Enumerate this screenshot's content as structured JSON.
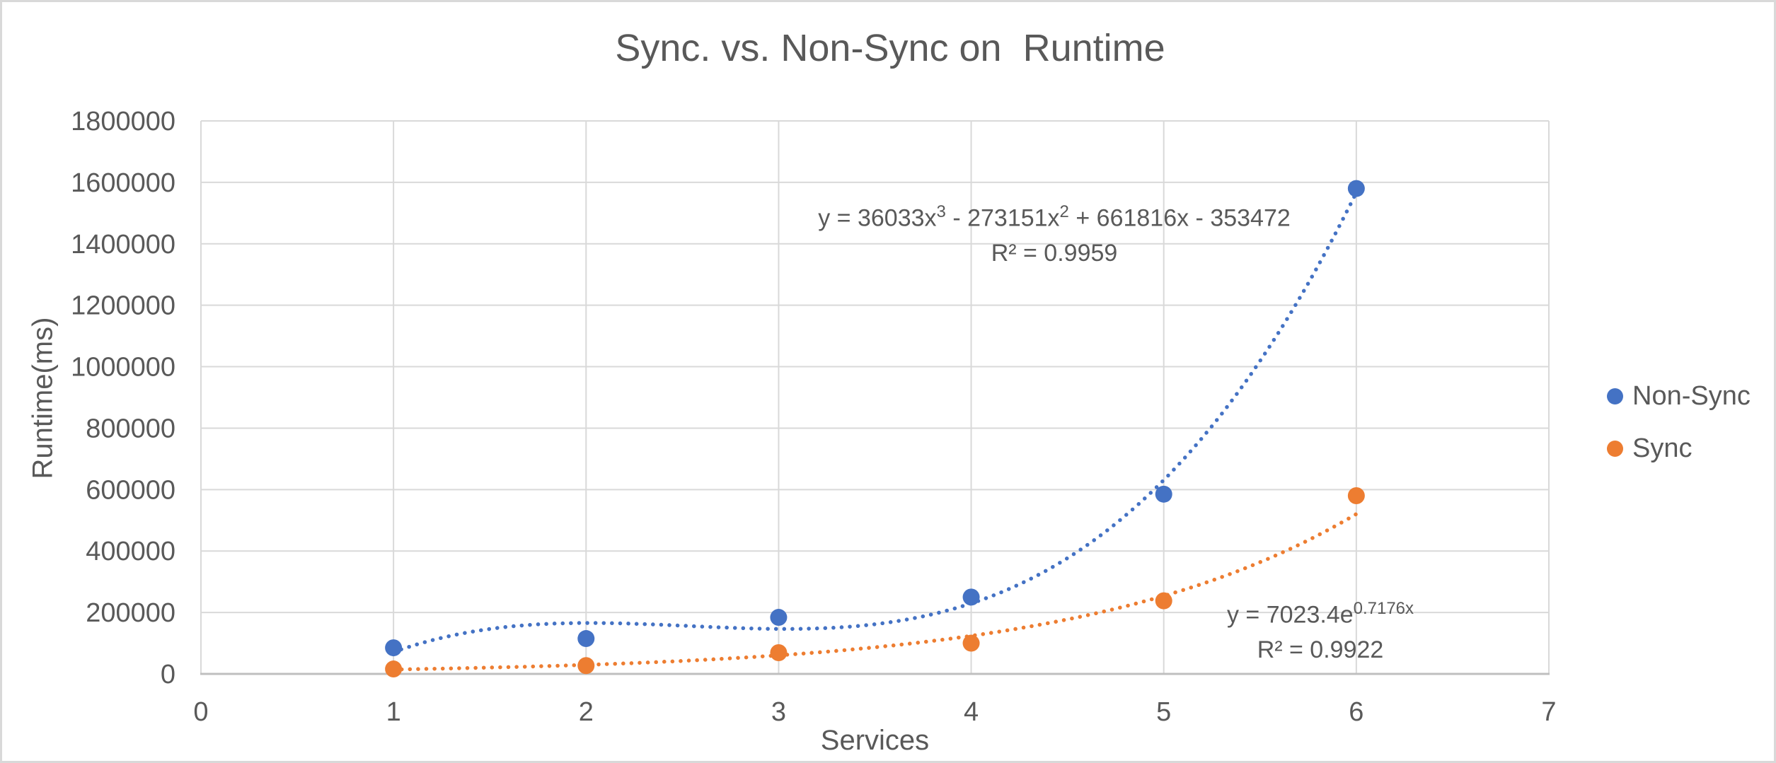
{
  "chart_data": {
    "type": "scatter",
    "title": "Sync. vs. Non-Sync on  Runtime",
    "xlabel": "Services",
    "ylabel": "Runtime(ms)",
    "xlim": [
      0,
      7
    ],
    "ylim": [
      0,
      1800000
    ],
    "x_ticks": [
      0,
      1,
      2,
      3,
      4,
      5,
      6,
      7
    ],
    "y_ticks": [
      0,
      200000,
      400000,
      600000,
      800000,
      1000000,
      1200000,
      1400000,
      1600000,
      1800000
    ],
    "grid": true,
    "legend_position": "right",
    "series": [
      {
        "name": "Non-Sync",
        "color": "#4472C4",
        "x": [
          1,
          2,
          3,
          4,
          5,
          6
        ],
        "y": [
          85000,
          115000,
          184000,
          250000,
          585000,
          1580000
        ],
        "trendline": {
          "type": "polynomial",
          "degree": 3,
          "coefficients": [
            36033,
            -273151,
            661816,
            -353472
          ],
          "r_squared": 0.9959,
          "line_style": "dotted",
          "x_range": [
            1,
            6
          ]
        }
      },
      {
        "name": "Sync",
        "color": "#ED7D31",
        "x": [
          1,
          2,
          3,
          4,
          5,
          6
        ],
        "y": [
          16000,
          27000,
          69000,
          100000,
          238000,
          580000
        ],
        "trendline": {
          "type": "exponential",
          "a": 7023.4,
          "b": 0.7176,
          "r_squared": 0.9922,
          "line_style": "dotted",
          "x_range": [
            1,
            6
          ]
        }
      }
    ],
    "annotations": {
      "nonsync_equation": {
        "p1": "y = 36033x",
        "s1": "3",
        "p2": " - 273151x",
        "s2": "2",
        "p3": " + 661816x - 353472",
        "r2": "R² = 0.9959"
      },
      "sync_equation": {
        "p1": "y = 7023.4e",
        "s1": "0.7176x",
        "r2": "R² = 0.9922"
      }
    },
    "colors": {
      "text": "#595959",
      "gridline": "#D9D9D9",
      "axis_line": "#BFBFBF",
      "background": "#FFFFFF",
      "border": "#D9D9D9"
    }
  }
}
